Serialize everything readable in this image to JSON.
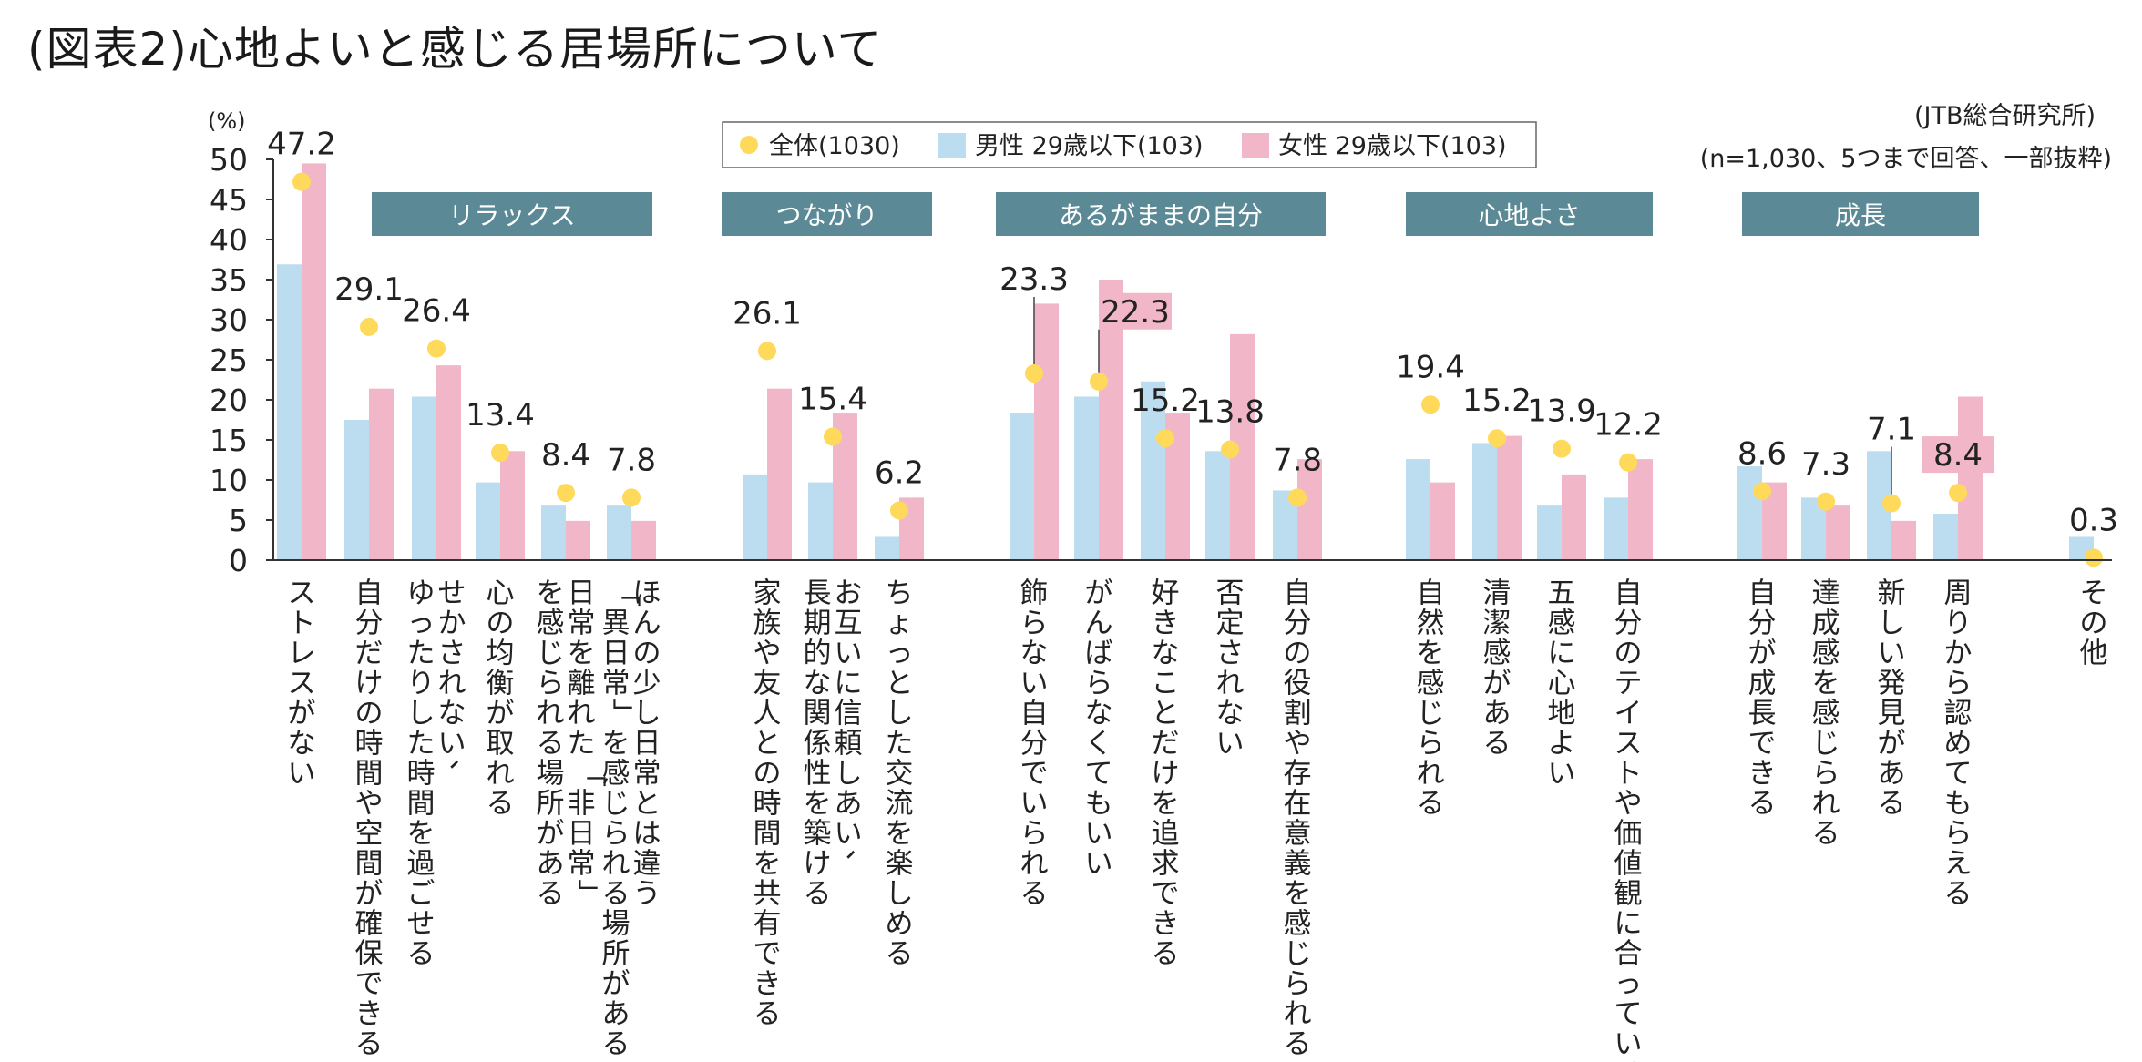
{
  "title": "(図表2)心地よいと感じる居場所について",
  "source": "(JTB総合研究所)",
  "note": "(n=1,030、5つまで回答、一部抜粋)",
  "colors": {
    "all": "#ffd95a",
    "male": "#bcdcef",
    "female": "#f1b7c9",
    "group_box": "#5b8a96",
    "highlight": "#f1b7c9"
  },
  "chart_data": {
    "type": "bar",
    "title": "(図表2)心地よいと感じる居場所について",
    "ylabel": "(%)",
    "ylim": [
      0,
      50
    ],
    "yticks": [
      0,
      5,
      10,
      15,
      20,
      25,
      30,
      35,
      40,
      45,
      50
    ],
    "legend": {
      "placement": "top-center",
      "entries": [
        "全体(1030)",
        "男性 29歳以下(103)",
        "女性 29歳以下(103)"
      ]
    },
    "groups": [
      "リラックス",
      "つながり",
      "あるがままの自分",
      "心地よさ",
      "成長"
    ],
    "categories": [
      {
        "label": [
          "ストレスがない"
        ],
        "group": 0
      },
      {
        "label": [
          "自分だけの時間や空間が確保できる"
        ],
        "group": 0
      },
      {
        "label": [
          "せかされない、",
          "ゆったりした時間を過ごせる"
        ],
        "group": 0
      },
      {
        "label": [
          "心の均衡が取れる"
        ],
        "group": 0
      },
      {
        "label": [
          "日常を離れた「非日常」",
          "を感じられる場所がある"
        ],
        "group": 0
      },
      {
        "label": [
          "ほんの少し日常とは違う",
          "「異日常」を感じられる場所がある"
        ],
        "group": 0
      },
      {
        "label": [
          "家族や友人との時間を共有できる"
        ],
        "group": 1
      },
      {
        "label": [
          "お互いに信頼しあい、",
          "長期的な関係性を築ける"
        ],
        "group": 1
      },
      {
        "label": [
          "ちょっとした交流を楽しめる"
        ],
        "group": 1
      },
      {
        "label": [
          "飾らない自分でいられる"
        ],
        "group": 2
      },
      {
        "label": [
          "がんばらなくてもいい"
        ],
        "group": 2
      },
      {
        "label": [
          "好きなことだけを追求できる"
        ],
        "group": 2
      },
      {
        "label": [
          "否定されない"
        ],
        "group": 2
      },
      {
        "label": [
          "自分の役割や存在意義を感じられる"
        ],
        "group": 2
      },
      {
        "label": [
          "自然を感じられる"
        ],
        "group": 3
      },
      {
        "label": [
          "清潔感がある"
        ],
        "group": 3
      },
      {
        "label": [
          "五感に心地よい"
        ],
        "group": 3
      },
      {
        "label": [
          "自分のテイストや価値観に合っている"
        ],
        "group": 3
      },
      {
        "label": [
          "自分が成長できる"
        ],
        "group": 4
      },
      {
        "label": [
          "達成感を感じられる"
        ],
        "group": 4
      },
      {
        "label": [
          "新しい発見がある"
        ],
        "group": 4
      },
      {
        "label": [
          "周りから認めてもらえる"
        ],
        "group": 4
      },
      {
        "label": [
          "その他"
        ],
        "group": 5
      }
    ],
    "series": [
      {
        "name": "全体(1030)",
        "kind": "point",
        "values": [
          47.2,
          29.1,
          26.4,
          13.4,
          8.4,
          7.8,
          26.1,
          15.4,
          6.2,
          23.3,
          22.3,
          15.2,
          13.8,
          7.8,
          19.4,
          15.2,
          13.9,
          12.2,
          8.6,
          7.3,
          7.1,
          8.4,
          0.3
        ]
      },
      {
        "name": "男性 29歳以下(103)",
        "kind": "bar",
        "values": [
          36.9,
          17.5,
          20.4,
          9.7,
          6.8,
          6.8,
          10.7,
          9.7,
          2.9,
          18.4,
          20.4,
          22.3,
          13.6,
          8.7,
          12.6,
          14.6,
          6.8,
          7.8,
          11.7,
          7.8,
          13.6,
          5.8,
          2.9
        ]
      },
      {
        "name": "女性 29歳以下(103)",
        "kind": "bar",
        "values": [
          49.5,
          21.4,
          24.3,
          13.6,
          4.9,
          4.9,
          21.4,
          18.4,
          7.8,
          32.0,
          35.0,
          18.4,
          28.2,
          12.6,
          9.7,
          15.5,
          10.7,
          12.6,
          9.7,
          6.8,
          4.9,
          20.4,
          null
        ]
      }
    ],
    "data_labels": [
      "47.2",
      "29.1",
      "26.4",
      "13.4",
      "8.4",
      "7.8",
      "26.1",
      "15.4",
      "6.2",
      "23.3",
      "22.3",
      "15.2",
      "13.8",
      "7.8",
      "19.4",
      "15.2",
      "13.9",
      "12.2",
      "8.6",
      "7.3",
      "7.1",
      "8.4",
      "0.3"
    ],
    "highlighted_labels": [
      10,
      21
    ]
  }
}
